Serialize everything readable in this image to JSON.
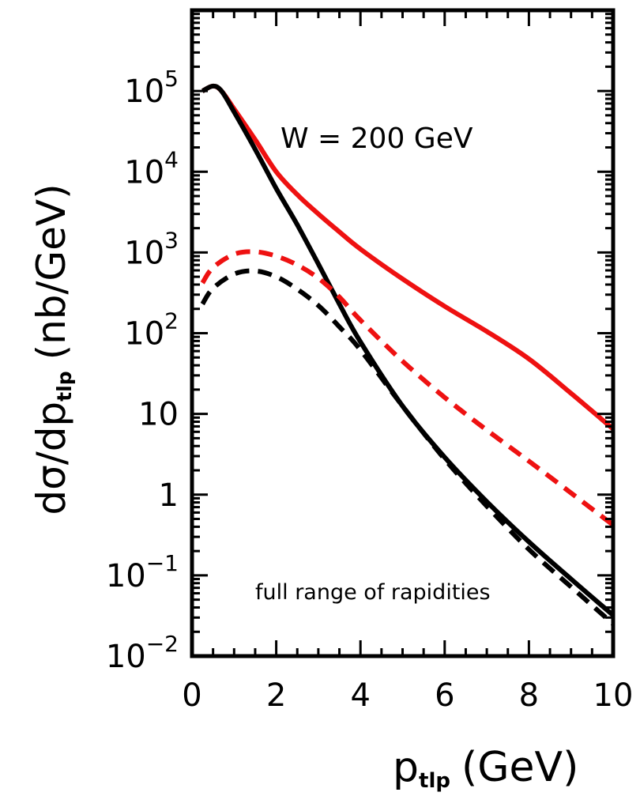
{
  "chart_data": {
    "type": "line",
    "title": "",
    "ylabel": {
      "main": "dσ/dp",
      "sub": "tlp",
      "unit": "(nb/GeV)"
    },
    "xlabel": {
      "main": "p",
      "sub": "tlp",
      "unit": "(GeV)"
    },
    "xlim": [
      0,
      10
    ],
    "ylim": [
      0.01,
      1000000
    ],
    "yscale": "log",
    "grid": false,
    "x_ticks": [
      {
        "value": 0,
        "label": "0"
      },
      {
        "value": 2,
        "label": "2"
      },
      {
        "value": 4,
        "label": "4"
      },
      {
        "value": 6,
        "label": "6"
      },
      {
        "value": 8,
        "label": "8"
      },
      {
        "value": 10,
        "label": "10"
      }
    ],
    "y_ticks": [
      {
        "value": 0.01,
        "base": "10",
        "exp": "−2"
      },
      {
        "value": 0.1,
        "base": "10",
        "exp": "−1"
      },
      {
        "value": 1,
        "base": "1",
        "exp": ""
      },
      {
        "value": 10,
        "base": "10",
        "exp": ""
      },
      {
        "value": 100,
        "base": "10",
        "exp": "2"
      },
      {
        "value": 1000,
        "base": "10",
        "exp": "3"
      },
      {
        "value": 10000,
        "base": "10",
        "exp": "4"
      },
      {
        "value": 100000,
        "base": "10",
        "exp": "5"
      }
    ],
    "annotations": {
      "energy": "W = 200 GeV",
      "range": "full range of rapidities"
    },
    "series": [
      {
        "color": "#ee1111",
        "dash": "solid",
        "points": [
          [
            0.25,
            100000
          ],
          [
            0.5,
            115000
          ],
          [
            0.7,
            100000
          ],
          [
            1.0,
            60000
          ],
          [
            1.5,
            25000
          ],
          [
            2.0,
            10000
          ],
          [
            2.5,
            5200
          ],
          [
            3.0,
            3000
          ],
          [
            3.5,
            1800
          ],
          [
            4.0,
            1100
          ],
          [
            5.0,
            470
          ],
          [
            6.0,
            215
          ],
          [
            7.0,
            105
          ],
          [
            8.0,
            48
          ],
          [
            9.0,
            18
          ],
          [
            10.0,
            6.5
          ]
        ]
      },
      {
        "color": "#000000",
        "dash": "solid",
        "points": [
          [
            0.25,
            100000
          ],
          [
            0.5,
            115000
          ],
          [
            0.7,
            100000
          ],
          [
            1.0,
            55000
          ],
          [
            1.5,
            19000
          ],
          [
            2.0,
            6200
          ],
          [
            2.5,
            2200
          ],
          [
            3.0,
            720
          ],
          [
            3.5,
            230
          ],
          [
            4.0,
            78
          ],
          [
            5.0,
            12.5
          ],
          [
            6.0,
            2.9
          ],
          [
            7.0,
            0.82
          ],
          [
            8.0,
            0.26
          ],
          [
            9.0,
            0.09
          ],
          [
            10.0,
            0.032
          ]
        ]
      },
      {
        "color": "#ee1111",
        "dash": "dashed",
        "points": [
          [
            0.25,
            420
          ],
          [
            0.5,
            650
          ],
          [
            1.0,
            950
          ],
          [
            1.5,
            1020
          ],
          [
            2.0,
            900
          ],
          [
            2.5,
            700
          ],
          [
            3.0,
            480
          ],
          [
            3.5,
            280
          ],
          [
            4.0,
            145
          ],
          [
            5.0,
            45
          ],
          [
            6.0,
            16
          ],
          [
            7.0,
            6.3
          ],
          [
            8.0,
            2.6
          ],
          [
            9.0,
            1.05
          ],
          [
            10.0,
            0.42
          ]
        ]
      },
      {
        "color": "#000000",
        "dash": "dashed",
        "points": [
          [
            0.25,
            230
          ],
          [
            0.5,
            360
          ],
          [
            1.0,
            540
          ],
          [
            1.5,
            590
          ],
          [
            2.0,
            500
          ],
          [
            2.5,
            350
          ],
          [
            3.0,
            220
          ],
          [
            3.5,
            120
          ],
          [
            4.0,
            62
          ],
          [
            5.0,
            12.5
          ],
          [
            6.0,
            2.75
          ],
          [
            7.0,
            0.72
          ],
          [
            8.0,
            0.21
          ],
          [
            9.0,
            0.072
          ],
          [
            10.0,
            0.025
          ]
        ]
      }
    ]
  }
}
